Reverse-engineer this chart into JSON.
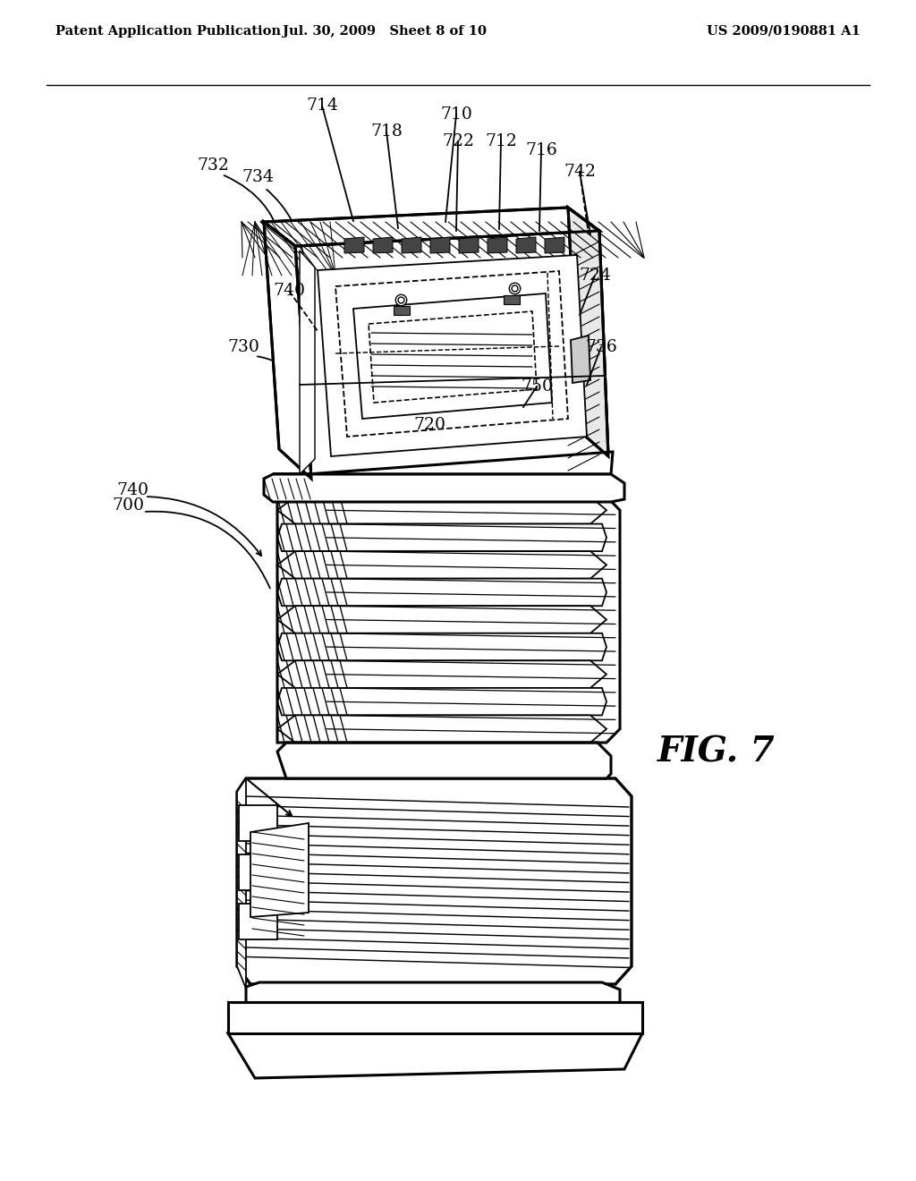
{
  "background_color": "#ffffff",
  "header_left": "Patent Application Publication",
  "header_center": "Jul. 30, 2009   Sheet 8 of 10",
  "header_right": "US 2009/0190881 A1",
  "fig_label": "FIG. 7",
  "lw_main": 2.2,
  "lw_thin": 1.3,
  "lw_hatch": 0.8
}
